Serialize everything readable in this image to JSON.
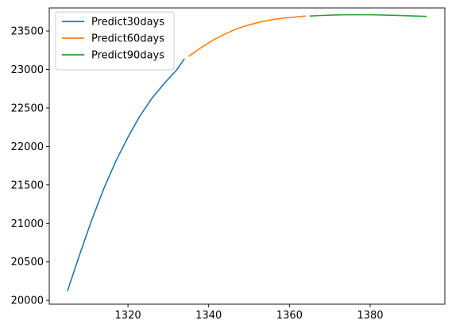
{
  "chart_data": {
    "type": "line",
    "title": "",
    "xlabel": "",
    "ylabel": "",
    "xlim": [
      1300.5,
      1398.5
    ],
    "ylim": [
      19950,
      23800
    ],
    "grid": false,
    "legend_position": "top-left",
    "x_ticks": [
      1320,
      1340,
      1360,
      1380
    ],
    "y_ticks": [
      20000,
      20500,
      21000,
      21500,
      22000,
      22500,
      23000,
      23500
    ],
    "x_tick_labels": [
      "1320",
      "1340",
      "1360",
      "1380"
    ],
    "y_tick_labels": [
      "20000",
      "20500",
      "21000",
      "21500",
      "22000",
      "22500",
      "23000",
      "23500"
    ],
    "series": [
      {
        "name": "Predict30days",
        "color": "#1f77b4",
        "x": [
          1305,
          1308,
          1311,
          1314,
          1317,
          1320,
          1323,
          1326,
          1329,
          1332,
          1334
        ],
        "y": [
          20120,
          20590,
          21040,
          21450,
          21810,
          22120,
          22400,
          22630,
          22820,
          22990,
          23140
        ]
      },
      {
        "name": "Predict60days",
        "color": "#ff7f0e",
        "x": [
          1335,
          1338,
          1341,
          1344,
          1347,
          1350,
          1353,
          1356,
          1359,
          1362,
          1364
        ],
        "y": [
          23170,
          23280,
          23380,
          23460,
          23530,
          23580,
          23620,
          23650,
          23670,
          23685,
          23695
        ]
      },
      {
        "name": "Predict90days",
        "color": "#2ca02c",
        "x": [
          1365,
          1368,
          1371,
          1374,
          1377,
          1380,
          1383,
          1386,
          1389,
          1392,
          1394
        ],
        "y": [
          23695,
          23702,
          23708,
          23711,
          23712,
          23711,
          23708,
          23704,
          23699,
          23694,
          23690
        ]
      }
    ]
  }
}
